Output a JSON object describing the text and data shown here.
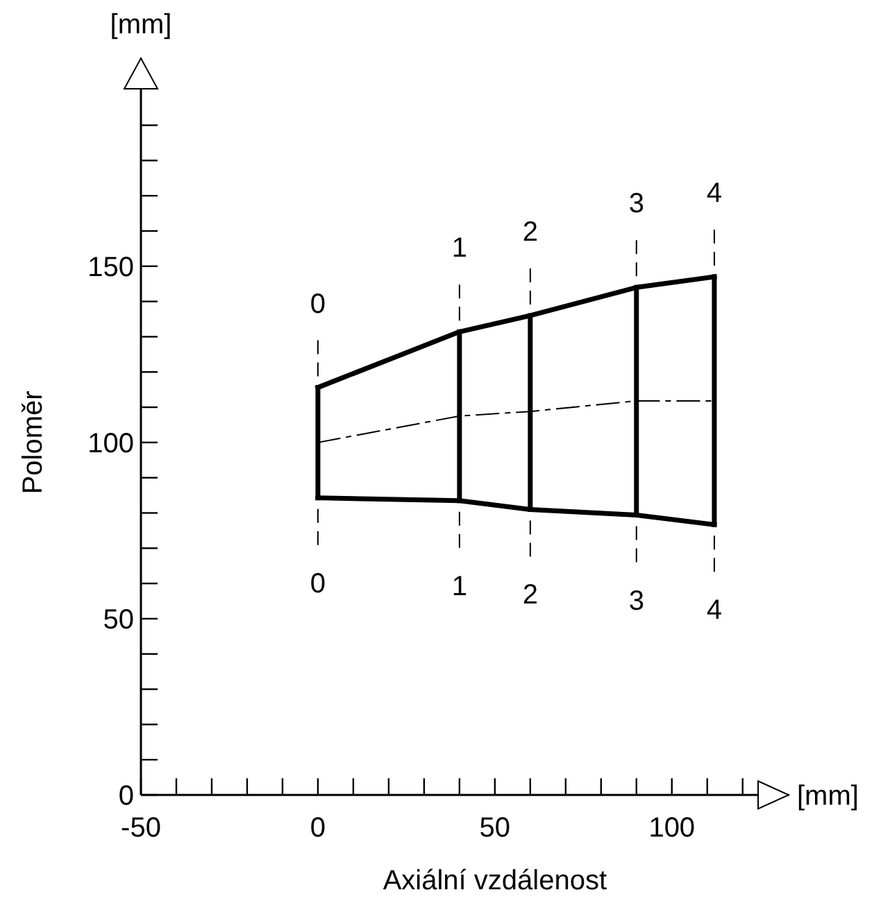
{
  "chart_data": {
    "type": "line",
    "xlabel": "Axiální vzdálenost",
    "ylabel": "Poloměr",
    "xlim": [
      -50,
      133
    ],
    "ylim": [
      0,
      209
    ],
    "xticks": [
      -50,
      {
        "value": -40,
        "label": null
      },
      {
        "value": -30,
        "label": null
      },
      {
        "value": -20,
        "label": null
      },
      {
        "value": -10,
        "label": null
      },
      0,
      {
        "value": 10,
        "label": null
      },
      {
        "value": 20,
        "label": null
      },
      {
        "value": 30,
        "label": null
      },
      {
        "value": 40,
        "label": null
      },
      50,
      {
        "value": 60,
        "label": null
      },
      {
        "value": 70,
        "label": null
      },
      {
        "value": 80,
        "label": null
      },
      {
        "value": 90,
        "label": null
      },
      100,
      {
        "value": 110,
        "label": null
      },
      {
        "value": 120,
        "label": null
      }
    ],
    "yticks": [
      0,
      {
        "value": 10,
        "label": null
      },
      {
        "value": 20,
        "label": null
      },
      {
        "value": 30,
        "label": null
      },
      {
        "value": 40,
        "label": null
      },
      50,
      {
        "value": 60,
        "label": null
      },
      {
        "value": 70,
        "label": null
      },
      {
        "value": 80,
        "label": null
      },
      {
        "value": 90,
        "label": null
      },
      100,
      {
        "value": 110,
        "label": null
      },
      {
        "value": 120,
        "label": null
      },
      {
        "value": 130,
        "label": null
      },
      {
        "value": 140,
        "label": null
      },
      150,
      {
        "value": 160,
        "label": null
      },
      {
        "value": 170,
        "label": null
      },
      {
        "value": 180,
        "label": null
      },
      {
        "value": 190,
        "label": null
      }
    ],
    "marker": "none",
    "series": [
      {
        "color": "#000000",
        "line_style": "solid",
        "x": [
          0,
          40,
          60,
          90,
          112
        ],
        "values": [
          115.6,
          131.4,
          136,
          144,
          147
        ]
      },
      {
        "color": "#000000",
        "line_style": "solid",
        "x": [
          0,
          40,
          60,
          90,
          112
        ],
        "values": [
          84.3,
          83.5,
          81,
          79.4,
          76.7
        ]
      },
      {
        "color": "#000000",
        "line_style": "dashed",
        "x": [
          0,
          40,
          60,
          90,
          112
        ],
        "values": [
          100,
          107.5,
          108.8,
          111.8,
          111.8
        ]
      },
      {
        "color": "#000000",
        "line_style": "solid",
        "x": [
          0,
          0
        ],
        "values": [
          84.3,
          115.6
        ]
      },
      {
        "color": "#000000",
        "line_style": "solid",
        "x": [
          40,
          40
        ],
        "values": [
          83.5,
          131.4
        ]
      },
      {
        "color": "#000000",
        "line_style": "solid",
        "x": [
          60,
          60
        ],
        "values": [
          81,
          136
        ]
      },
      {
        "color": "#000000",
        "line_style": "solid",
        "x": [
          90,
          90
        ],
        "values": [
          79.4,
          144
        ]
      },
      {
        "color": "#000000",
        "line_style": "solid",
        "x": [
          112,
          112
        ],
        "values": [
          76.7,
          147
        ]
      }
    ],
    "annotations": [
      "[mm]",
      "[mm]",
      "0",
      "1",
      "2",
      "3",
      "4",
      "0",
      "1",
      "2",
      "3",
      "4"
    ]
  }
}
